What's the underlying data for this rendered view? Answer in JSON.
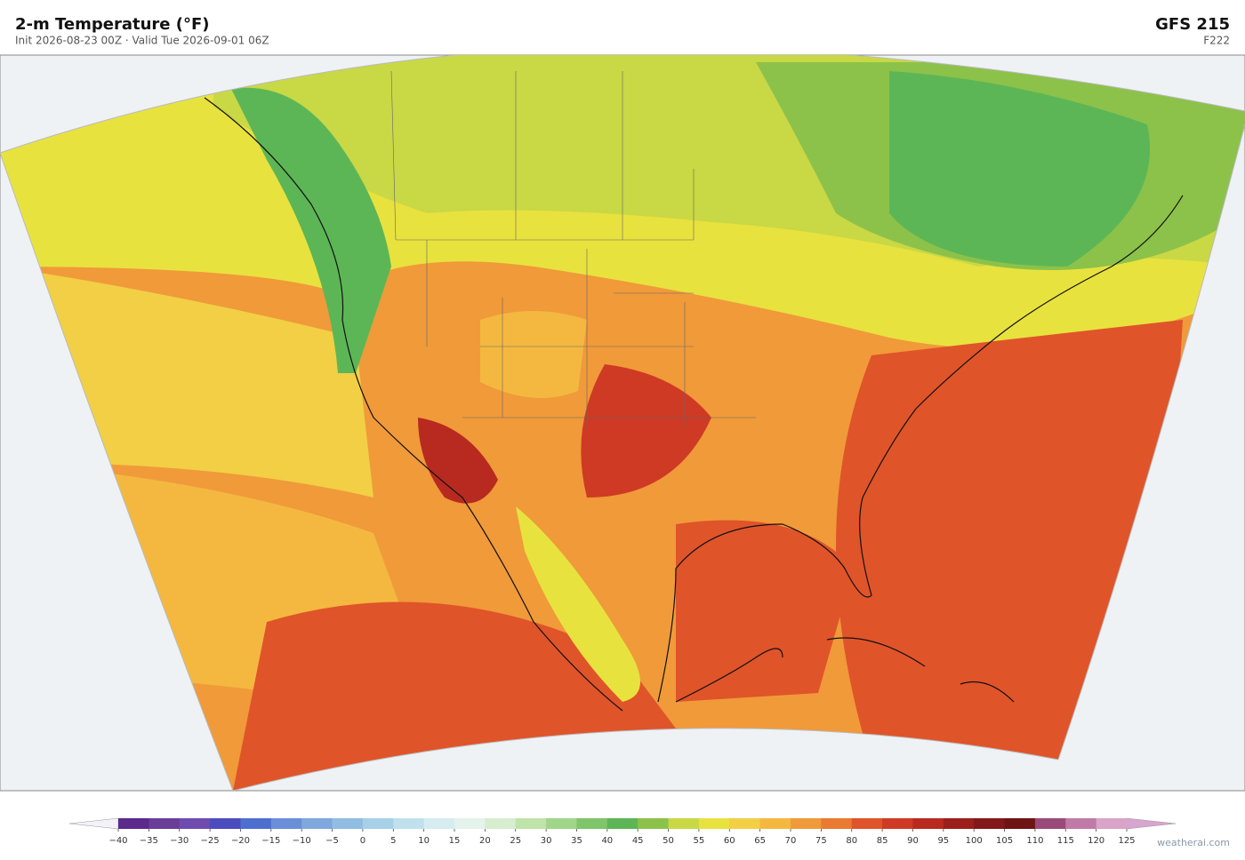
{
  "header": {
    "title": "2-m Temperature  (°F)",
    "subtitle": "Init 2026-08-23 00Z  ·  Valid Tue 2026-09-01 06Z",
    "model": "GFS  215",
    "forecast_hour": "F222"
  },
  "colorbar": {
    "ticks": [
      {
        "value": -40,
        "label": "−40"
      },
      {
        "value": -35,
        "label": "−35"
      },
      {
        "value": -30,
        "label": "−30"
      },
      {
        "value": -25,
        "label": "−25"
      },
      {
        "value": -20,
        "label": "−20"
      },
      {
        "value": -15,
        "label": "−15"
      },
      {
        "value": -10,
        "label": "−10"
      },
      {
        "value": -5,
        "label": "−5"
      },
      0,
      5,
      10,
      15,
      20,
      25,
      30,
      35,
      40,
      45,
      50,
      55,
      60,
      65,
      70,
      75,
      80,
      85,
      90,
      95,
      100,
      105,
      110,
      115,
      120,
      125
    ],
    "colors": [
      "#5b2a8c",
      "#6a3d9a",
      "#6f4bb0",
      "#4b4dbf",
      "#4f6fd0",
      "#6a8fd8",
      "#7fa8de",
      "#92bde2",
      "#a8d0e8",
      "#c0e0ee",
      "#d6ecf0",
      "#e4f3ec",
      "#d6edd0",
      "#bfe3a8",
      "#a0d68a",
      "#7fc56a",
      "#5db656",
      "#8cc24a",
      "#c9d845",
      "#e8e23e",
      "#f2cf45",
      "#f4b840",
      "#f09a3a",
      "#ea7a32",
      "#e0542a",
      "#cf3a24",
      "#b82a20",
      "#9c1f1c",
      "#82181a",
      "#6e1414",
      "#9a4a78",
      "#c07aa8",
      "#d8a4c8"
    ],
    "under_color": "#f2f2f8",
    "over_color": "#d8a4d0"
  },
  "watermark": "weatherai.com"
}
